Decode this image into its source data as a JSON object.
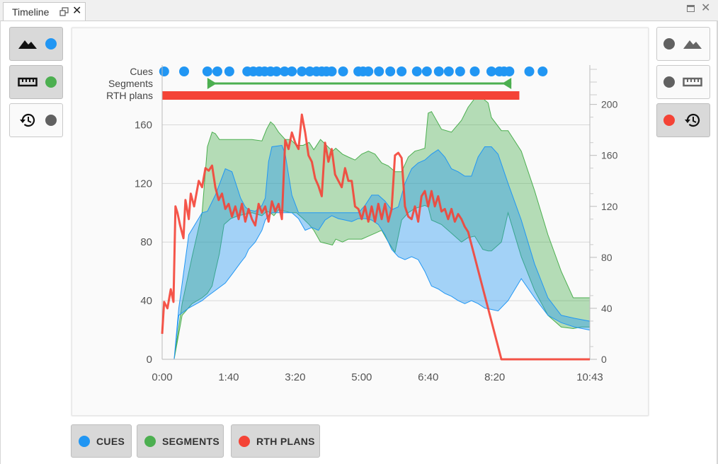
{
  "tab": {
    "title": "Timeline"
  },
  "left_panel": [
    {
      "icon": "terrain-icon",
      "color": "#2196F3",
      "active": true
    },
    {
      "icon": "ruler-icon",
      "color": "#4CAF50",
      "active": true
    },
    {
      "icon": "history-icon",
      "color": "#616161",
      "active": false
    }
  ],
  "right_panel": [
    {
      "icon": "terrain-icon",
      "color": "#616161",
      "active": false
    },
    {
      "icon": "ruler-icon",
      "color": "#616161",
      "active": false
    },
    {
      "icon": "history-icon",
      "color": "#F44336",
      "active": true
    }
  ],
  "legend": [
    {
      "label": "CUES",
      "color": "#2196F3"
    },
    {
      "label": "SEGMENTS",
      "color": "#4CAF50"
    },
    {
      "label": "RTH PLANS",
      "color": "#F44336"
    }
  ],
  "chart_data": {
    "type": "area",
    "x_ticks": [
      "0:00",
      "1:40",
      "3:20",
      "5:00",
      "6:40",
      "8:20",
      "10:43"
    ],
    "x_tick_seconds": [
      0,
      100,
      200,
      300,
      400,
      500,
      643
    ],
    "x_range_seconds": [
      0,
      643
    ],
    "y_left": {
      "ticks": [
        0,
        40,
        80,
        120,
        160
      ],
      "range": [
        0,
        180
      ]
    },
    "y_right": {
      "ticks": [
        0,
        40,
        80,
        120,
        160,
        200
      ],
      "range": [
        0,
        207
      ]
    },
    "grid": true,
    "tracks": [
      {
        "label": "Cues",
        "type": "points",
        "color": "#2196F3",
        "x_seconds": [
          3,
          33,
          68,
          83,
          101,
          128,
          137,
          146,
          154,
          163,
          172,
          184,
          195,
          210,
          222,
          232,
          240,
          247,
          255,
          272,
          295,
          302,
          310,
          326,
          343,
          360,
          383,
          398,
          416,
          431,
          448,
          470,
          495,
          507,
          514,
          522,
          552,
          572
        ]
      },
      {
        "label": "Segments",
        "type": "range",
        "color": "#4CAF50",
        "start_seconds": 68,
        "end_seconds": 525
      },
      {
        "label": "RTH plans",
        "type": "range",
        "color": "#F44336",
        "start_seconds": 0,
        "end_seconds": 537
      }
    ],
    "series": [
      {
        "name": "Segments",
        "color": "#4CAF50",
        "kind": "band",
        "x": [
          0,
          18,
          30,
          45,
          60,
          68,
          75,
          80,
          86,
          93,
          103,
          115,
          135,
          150,
          157,
          163,
          168,
          175,
          185,
          193,
          202,
          212,
          221,
          228,
          238,
          256,
          261,
          271,
          280,
          290,
          300,
          310,
          320,
          330,
          340,
          350,
          360,
          370,
          380,
          388,
          395,
          400,
          405,
          420,
          435,
          450,
          460,
          470,
          482,
          490,
          495,
          510,
          520,
          540,
          560,
          580,
          600,
          618,
          630,
          643
        ],
        "upper": [
          0,
          0,
          38,
          70,
          100,
          145,
          155,
          154,
          150,
          150,
          150,
          150,
          150,
          149,
          157,
          162,
          160,
          155,
          150,
          150,
          146,
          146,
          148,
          143,
          150,
          142,
          144,
          140,
          138,
          136,
          140,
          142,
          140,
          134,
          132,
          128,
          128,
          138,
          142,
          143,
          144,
          168,
          169,
          157,
          155,
          163,
          172,
          178,
          178,
          175,
          165,
          156,
          156,
          142,
          115,
          85,
          60,
          42,
          42,
          42
        ],
        "lower": [
          0,
          0,
          30,
          38,
          42,
          45,
          50,
          60,
          72,
          92,
          96,
          98,
          100,
          98,
          101,
          100,
          98,
          102,
          101,
          100,
          100,
          96,
          92,
          88,
          80,
          78,
          82,
          80,
          82,
          82,
          82,
          84,
          86,
          88,
          80,
          73,
          95,
          100,
          103,
          104,
          105,
          104,
          95,
          92,
          86,
          80,
          83,
          84,
          75,
          74,
          74,
          80,
          100,
          70,
          47,
          30,
          22,
          21,
          22,
          22
        ]
      },
      {
        "name": "Cues",
        "color": "#2196F3",
        "kind": "band",
        "x": [
          0,
          18,
          25,
          40,
          60,
          68,
          80,
          95,
          105,
          118,
          125,
          130,
          140,
          150,
          155,
          160,
          165,
          180,
          185,
          195,
          205,
          215,
          225,
          235,
          245,
          255,
          265,
          275,
          285,
          295,
          305,
          315,
          325,
          335,
          345,
          355,
          365,
          375,
          385,
          395,
          405,
          415,
          425,
          435,
          445,
          455,
          465,
          475,
          485,
          495,
          505,
          520,
          540,
          560,
          580,
          600,
          620,
          643
        ],
        "upper": [
          0,
          0,
          35,
          85,
          100,
          101,
          112,
          130,
          128,
          110,
          104,
          102,
          101,
          105,
          110,
          135,
          145,
          146,
          140,
          112,
          100,
          100,
          100,
          100,
          100,
          100,
          100,
          100,
          100,
          100,
          105,
          112,
          112,
          108,
          102,
          104,
          120,
          130,
          134,
          136,
          140,
          143,
          138,
          130,
          128,
          125,
          125,
          138,
          145,
          145,
          140,
          120,
          95,
          65,
          42,
          30,
          28,
          26
        ],
        "lower": [
          0,
          0,
          30,
          35,
          40,
          43,
          47,
          52,
          58,
          66,
          70,
          75,
          80,
          88,
          95,
          98,
          100,
          100,
          100,
          100,
          96,
          88,
          90,
          88,
          95,
          98,
          96,
          95,
          94,
          96,
          96,
          95,
          92,
          85,
          75,
          70,
          68,
          70,
          68,
          60,
          50,
          48,
          45,
          43,
          40,
          38,
          40,
          38,
          35,
          34,
          33,
          40,
          55,
          42,
          30,
          25,
          22,
          20
        ]
      },
      {
        "name": "RTH plans",
        "color": "#F44336",
        "kind": "line",
        "axis": "right",
        "x": [
          0,
          3,
          8,
          13,
          17,
          20,
          23,
          27,
          32,
          35,
          40,
          43,
          48,
          55,
          60,
          65,
          70,
          75,
          80,
          85,
          90,
          95,
          100,
          105,
          110,
          115,
          120,
          125,
          130,
          135,
          140,
          145,
          150,
          155,
          160,
          165,
          170,
          175,
          180,
          185,
          190,
          195,
          200,
          205,
          210,
          215,
          220,
          225,
          230,
          235,
          240,
          245,
          250,
          255,
          260,
          265,
          270,
          275,
          280,
          285,
          290,
          295,
          300,
          305,
          310,
          315,
          320,
          325,
          330,
          335,
          340,
          345,
          350,
          355,
          360,
          365,
          370,
          375,
          380,
          385,
          390,
          395,
          400,
          405,
          410,
          415,
          420,
          425,
          430,
          435,
          440,
          445,
          450,
          455,
          460,
          465,
          470,
          475,
          480,
          485,
          490,
          495,
          500,
          505,
          510,
          515,
          520,
          525,
          530,
          535,
          540,
          545,
          550,
          560,
          570,
          580,
          590,
          600,
          610,
          620,
          630,
          643
        ],
        "values": [
          20,
          45,
          40,
          55,
          45,
          120,
          115,
          105,
          95,
          125,
          110,
          130,
          120,
          140,
          135,
          150,
          148,
          152,
          135,
          125,
          130,
          118,
          122,
          112,
          120,
          110,
          122,
          108,
          118,
          110,
          105,
          122,
          115,
          120,
          108,
          124,
          116,
          122,
          110,
          172,
          165,
          178,
          170,
          165,
          192,
          178,
          160,
          155,
          142,
          136,
          128,
          170,
          155,
          165,
          145,
          140,
          135,
          150,
          140,
          140,
          120,
          118,
          110,
          120,
          108,
          120,
          108,
          122,
          110,
          122,
          108,
          118,
          160,
          162,
          158,
          120,
          112,
          110,
          120,
          108,
          128,
          132,
          120,
          132,
          120,
          128,
          116,
          118,
          110,
          118,
          108,
          114,
          110,
          104,
          100,
          90,
          80,
          70,
          60,
          50,
          40,
          30,
          20,
          10,
          0,
          -10,
          -10,
          -10,
          -10,
          -10,
          -10,
          -10,
          -10,
          -10,
          -10,
          -10,
          -10,
          -10,
          -10,
          -10,
          -10,
          0
        ]
      }
    ]
  }
}
